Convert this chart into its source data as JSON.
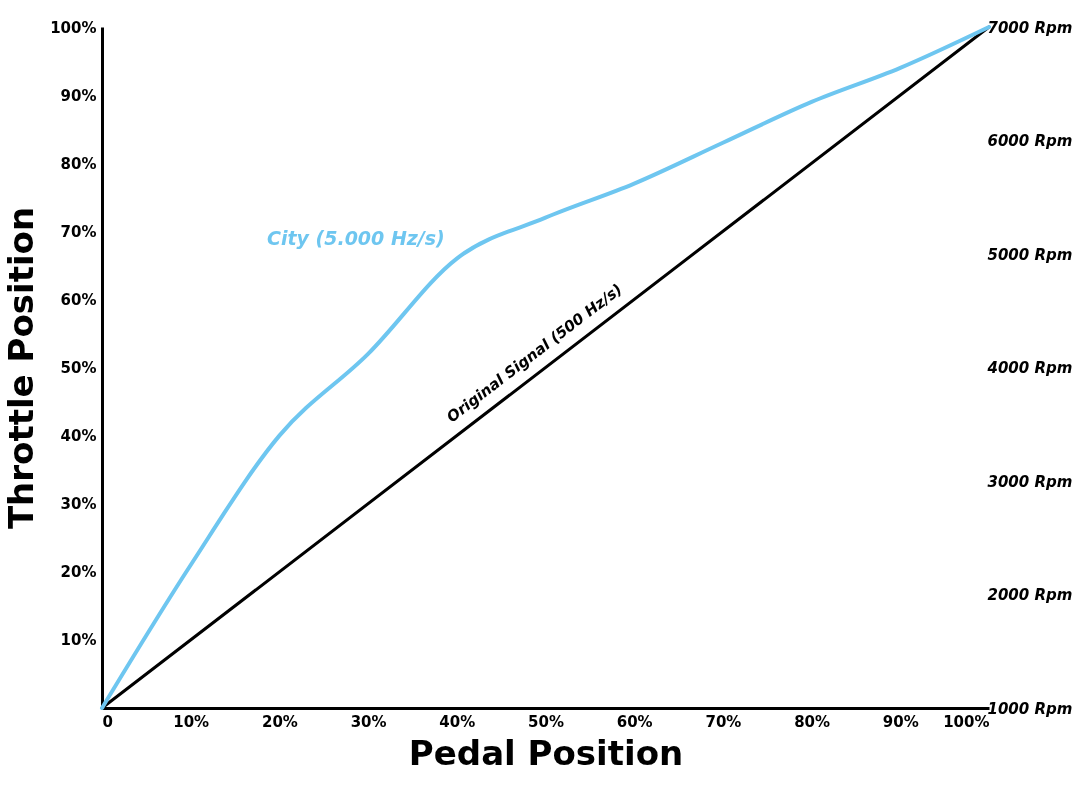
{
  "chart_data": {
    "type": "line",
    "xlabel": "Pedal Position",
    "ylabel": "Throttle Position",
    "x": [
      0,
      10,
      20,
      30,
      40,
      50,
      60,
      70,
      80,
      90,
      100
    ],
    "series": [
      {
        "name": "Original Signal (500 Hz/s)",
        "color": "#000000",
        "x": [
          0,
          100
        ],
        "values": [
          0,
          100
        ]
      },
      {
        "name": "City (5.000 Hz/s)",
        "color": "#6ec6f0",
        "values": [
          0,
          21,
          40,
          52,
          66,
          72,
          77,
          83,
          89,
          94,
          100
        ]
      }
    ],
    "xlim": [
      0,
      100
    ],
    "xticks": [
      0,
      {
        "value": 10,
        "label": "10%"
      },
      {
        "value": 20,
        "label": "20%"
      },
      {
        "value": 30,
        "label": "30%"
      },
      {
        "value": 40,
        "label": "40%"
      },
      {
        "value": 50,
        "label": "50%"
      },
      {
        "value": 60,
        "label": "60%"
      },
      {
        "value": 70,
        "label": "70%"
      },
      {
        "value": 80,
        "label": "80%"
      },
      {
        "value": 90,
        "label": "90%"
      },
      {
        "value": 100,
        "label": "100%"
      }
    ],
    "ylim": [
      0,
      100
    ],
    "yticks": [
      {
        "value": 10,
        "label": "10%"
      },
      {
        "value": 20,
        "label": "20%"
      },
      {
        "value": 30,
        "label": "30%"
      },
      {
        "value": 40,
        "label": "40%"
      },
      {
        "value": 50,
        "label": "50%"
      },
      {
        "value": 60,
        "label": "60%"
      },
      {
        "value": 70,
        "label": "70%"
      },
      {
        "value": 80,
        "label": "80%"
      },
      {
        "value": 90,
        "label": "90%"
      },
      {
        "value": 100,
        "label": "100%"
      }
    ],
    "y2lim": [
      1000,
      7000
    ],
    "y2ticks": [
      {
        "value": 1000,
        "label": "1000 Rpm"
      },
      {
        "value": 2000,
        "label": "2000 Rpm"
      },
      {
        "value": 3000,
        "label": "3000 Rpm"
      },
      {
        "value": 4000,
        "label": "4000 Rpm"
      },
      {
        "value": 5000,
        "label": "5000 Rpm"
      },
      {
        "value": 6000,
        "label": "6000 Rpm"
      },
      {
        "value": 7000,
        "label": "7000 Rpm"
      }
    ],
    "marker": "none",
    "line_style": "solid"
  }
}
